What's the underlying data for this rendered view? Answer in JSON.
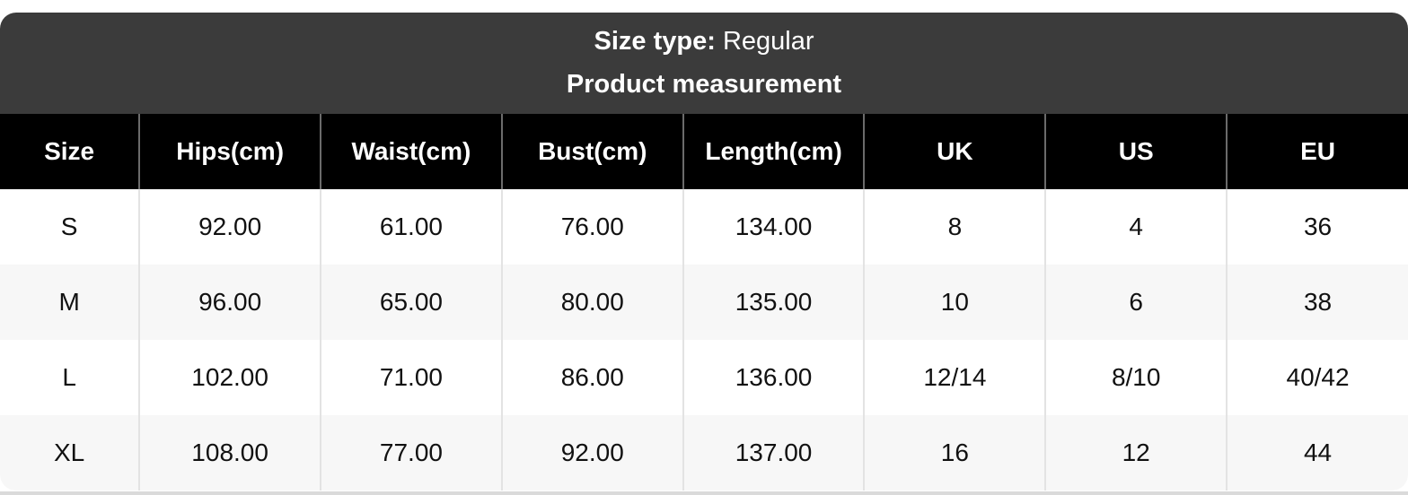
{
  "banner": {
    "size_type_label": "Size type:",
    "size_type_value": "Regular",
    "subtitle": "Product measurement"
  },
  "table": {
    "columns": [
      "Size",
      "Hips(cm)",
      "Waist(cm)",
      "Bust(cm)",
      "Length(cm)",
      "UK",
      "US",
      "EU"
    ],
    "rows": [
      [
        "S",
        "92.00",
        "61.00",
        "76.00",
        "134.00",
        "8",
        "4",
        "36"
      ],
      [
        "M",
        "96.00",
        "65.00",
        "80.00",
        "135.00",
        "10",
        "6",
        "38"
      ],
      [
        "L",
        "102.00",
        "71.00",
        "86.00",
        "136.00",
        "12/14",
        "8/10",
        "40/42"
      ],
      [
        "XL",
        "108.00",
        "77.00",
        "92.00",
        "137.00",
        "16",
        "12",
        "44"
      ]
    ]
  },
  "colors": {
    "banner_bg": "#3b3b3b",
    "banner_text": "#ffffff",
    "header_bg": "#000000",
    "header_text": "#ffffff",
    "header_divider": "#6b6b6b",
    "body_divider": "#e3e3e3",
    "row_bg": "#ffffff",
    "row_alt_bg": "#f7f7f7",
    "body_text": "#111111",
    "bottom_strip": "#dadada",
    "page_bg": "#ffffff"
  }
}
